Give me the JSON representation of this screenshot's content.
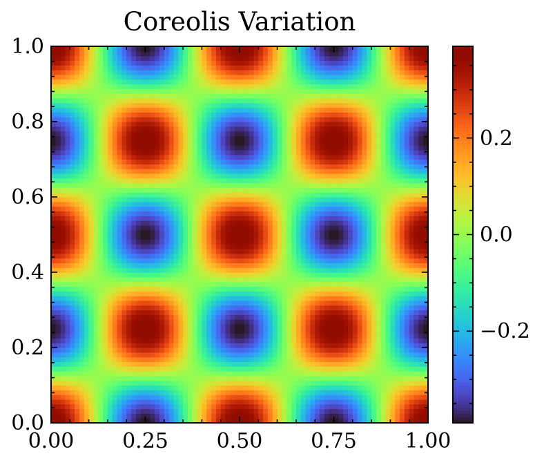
{
  "chart_data": {
    "type": "heatmap",
    "title": "Coreolis Variation",
    "xlabel": "",
    "ylabel": "",
    "xlim": [
      0.0,
      1.0
    ],
    "ylim": [
      0.0,
      1.0
    ],
    "x_ticks": [
      0.0,
      0.25,
      0.5,
      0.75,
      1.0
    ],
    "x_tick_labels": [
      "0.00",
      "0.25",
      "0.50",
      "0.75",
      "1.00"
    ],
    "y_ticks": [
      0.0,
      0.2,
      0.4,
      0.6,
      0.8,
      1.0
    ],
    "y_tick_labels": [
      "0.0",
      "0.2",
      "0.4",
      "0.6",
      "0.8",
      "1.0"
    ],
    "colormap": "turbo",
    "value_range": [
      -0.39,
      0.39
    ],
    "function": "0.39 * cos(4*pi*x) * cos(4*pi*y)",
    "grid_resolution": 80,
    "colorbar": {
      "ticks": [
        -0.2,
        0.0,
        0.2
      ],
      "tick_labels": [
        "−0.2",
        "0.0",
        "0.2"
      ],
      "minor_step": 0.05
    }
  }
}
